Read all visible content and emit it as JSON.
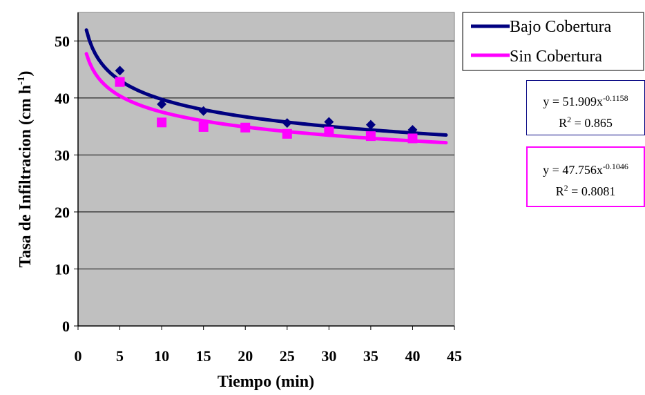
{
  "chart_data": {
    "type": "scatter",
    "title": "",
    "xlabel": "Tiempo (min)",
    "ylabel_main": "Tasa de Infiltracion (cm h",
    "ylabel_sup": "-1",
    "ylabel_close": ")",
    "xlim": [
      0,
      45
    ],
    "ylim": [
      0,
      55
    ],
    "xticks": [
      "0",
      "5",
      "10",
      "15",
      "20",
      "25",
      "30",
      "35",
      "40",
      "45"
    ],
    "yticks": [
      "0",
      "10",
      "20",
      "30",
      "40",
      "50"
    ],
    "grid": "horizontal",
    "plot_background": "#c0c0c0",
    "legend_position": "top-right",
    "series": [
      {
        "name": "Bajo Cobertura",
        "color": "#000080",
        "marker": "diamond",
        "points": [
          [
            5,
            44.8
          ],
          [
            10,
            38.9
          ],
          [
            15,
            37.7
          ],
          [
            25,
            35.6
          ],
          [
            30,
            35.8
          ],
          [
            35,
            35.3
          ],
          [
            40,
            34.4
          ]
        ],
        "fit": {
          "a": 51.909,
          "b": -0.1158,
          "x_range": [
            1,
            44
          ]
        },
        "equation": {
          "prefix": "y = 51.909x",
          "exponent": "-0.1158",
          "r2_prefix": "R",
          "r2_exp": "2",
          "r2_value": " = 0.865"
        }
      },
      {
        "name": "Sin Cobertura",
        "color": "#ff00ff",
        "marker": "square",
        "points": [
          [
            5,
            42.8
          ],
          [
            10,
            35.7
          ],
          [
            15,
            34.9
          ],
          [
            20,
            34.8
          ],
          [
            25,
            33.7
          ],
          [
            30,
            34.1
          ],
          [
            35,
            33.3
          ],
          [
            40,
            32.9
          ]
        ],
        "fit": {
          "a": 47.756,
          "b": -0.1046,
          "x_range": [
            1,
            44
          ]
        },
        "equation": {
          "prefix": "y = 47.756x",
          "exponent": "-0.1046",
          "r2_prefix": "R",
          "r2_exp": "2",
          "r2_value": " = 0.8081"
        }
      }
    ]
  }
}
